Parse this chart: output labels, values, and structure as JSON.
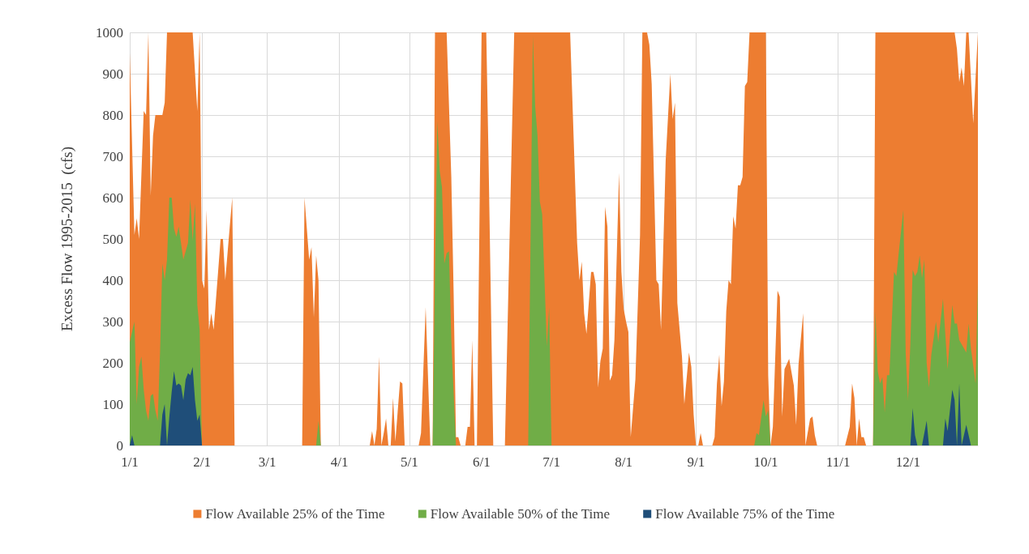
{
  "chart_data": {
    "type": "area",
    "ylabel": "Excess Flow 1995-2015  (cfs)",
    "xlim": [
      "--01-01",
      "--12-31"
    ],
    "xticks": [
      {
        "value": "--01-01",
        "label": "1/1"
      },
      {
        "value": "--02-01",
        "label": "2/1"
      },
      {
        "value": "--03-01",
        "label": "3/1"
      },
      {
        "value": "--04-01",
        "label": "4/1"
      },
      {
        "value": "--05-01",
        "label": "5/1"
      },
      {
        "value": "--06-01",
        "label": "6/1"
      },
      {
        "value": "--07-01",
        "label": "7/1"
      },
      {
        "value": "--08-01",
        "label": "8/1"
      },
      {
        "value": "--09-01",
        "label": "9/1"
      },
      {
        "value": "--10-01",
        "label": "10/1"
      },
      {
        "value": "--11-01",
        "label": "11/1"
      },
      {
        "value": "--12-01",
        "label": "12/1"
      }
    ],
    "ylim": [
      0,
      1000
    ],
    "yticks": [
      0,
      100,
      200,
      300,
      400,
      500,
      600,
      700,
      800,
      900,
      1000
    ],
    "grid": true,
    "legend": "bottom",
    "series": [
      {
        "name": "Flow Available 25% of the Time",
        "color": "#ed7d31",
        "x": [
          "--01-01",
          "--01-03",
          "--01-04",
          "--01-05",
          "--01-07",
          "--01-08",
          "--01-09",
          "--01-10",
          "--01-11",
          "--01-12",
          "--01-15",
          "--01-16",
          "--01-17",
          "--01-28",
          "--01-30",
          "--01-31",
          "--02-01",
          "--02-02",
          "--02-03",
          "--02-04",
          "--02-05",
          "--02-06",
          "--02-09",
          "--02-10",
          "--02-11",
          "--02-13",
          "--02-14",
          "--02-15",
          "--03-16",
          "--03-17",
          "--03-19",
          "--03-20",
          "--03-21",
          "--03-22",
          "--03-23",
          "--03-24",
          "--04-14",
          "--04-15",
          "--04-16",
          "--04-17",
          "--04-18",
          "--04-19",
          "--04-20",
          "--04-21",
          "--04-22",
          "--04-23",
          "--04-24",
          "--04-25",
          "--04-27",
          "--04-28",
          "--04-29",
          "--05-05",
          "--05-06",
          "--05-08",
          "--05-10",
          "--05-11",
          "--05-12",
          "--05-17",
          "--05-19",
          "--05-20",
          "--05-21",
          "--05-22",
          "--05-23",
          "--05-25",
          "--05-26",
          "--05-27",
          "--05-28",
          "--05-29",
          "--05-30",
          "--06-01",
          "--06-03",
          "--06-04",
          "--06-06",
          "--06-11",
          "--06-15",
          "--07-09",
          "--07-12",
          "--07-13",
          "--07-14",
          "--07-15",
          "--07-16",
          "--07-18",
          "--07-19",
          "--07-20",
          "--07-21",
          "--07-22",
          "--07-23",
          "--07-24",
          "--07-25",
          "--07-26",
          "--07-27",
          "--07-28",
          "--07-30",
          "--07-31",
          "--08-01",
          "--08-02",
          "--08-03",
          "--08-04",
          "--08-06",
          "--08-08",
          "--08-09",
          "--08-11",
          "--08-12",
          "--08-13",
          "--08-15",
          "--08-16",
          "--08-17",
          "--08-19",
          "--08-21",
          "--08-22",
          "--08-23",
          "--08-24",
          "--08-26",
          "--08-27",
          "--08-29",
          "--08-30",
          "--08-31",
          "--09-01",
          "--09-02",
          "--09-03",
          "--09-04",
          "--09-08",
          "--09-09",
          "--09-10",
          "--09-11",
          "--09-12",
          "--09-13",
          "--09-14",
          "--09-15",
          "--09-16",
          "--09-17",
          "--09-18",
          "--09-19",
          "--09-20",
          "--09-21",
          "--09-22",
          "--09-23",
          "--09-24",
          "--10-01",
          "--10-02",
          "--10-03",
          "--10-04",
          "--10-06",
          "--10-07",
          "--10-08",
          "--10-09",
          "--10-11",
          "--10-13",
          "--10-14",
          "--10-15",
          "--10-17",
          "--10-18",
          "--10-20",
          "--10-21",
          "--10-22",
          "--10-23",
          "--11-04",
          "--11-06",
          "--11-07",
          "--11-08",
          "--11-09",
          "--11-10",
          "--11-11",
          "--11-12",
          "--11-13",
          "--11-16",
          "--11-17",
          "--12-21",
          "--12-22",
          "--12-23",
          "--12-24",
          "--12-25",
          "--12-26",
          "--12-27",
          "--12-29",
          "--12-31"
        ],
        "values": [
          950,
          510,
          550,
          500,
          810,
          800,
          1000,
          605,
          750,
          800,
          800,
          830,
          1000,
          1000,
          810,
          1000,
          400,
          380,
          570,
          280,
          320,
          280,
          500,
          500,
          400,
          535,
          600,
          0,
          0,
          600,
          450,
          480,
          310,
          460,
          400,
          0,
          0,
          35,
          0,
          40,
          215,
          0,
          30,
          65,
          0,
          0,
          115,
          10,
          155,
          150,
          0,
          0,
          30,
          335,
          0,
          0,
          1000,
          1000,
          650,
          370,
          20,
          20,
          0,
          0,
          45,
          45,
          255,
          0,
          0,
          1000,
          1000,
          690,
          0,
          0,
          1000,
          1000,
          490,
          400,
          445,
          320,
          270,
          420,
          420,
          390,
          140,
          205,
          235,
          578,
          530,
          157,
          170,
          255,
          660,
          420,
          330,
          300,
          275,
          20,
          160,
          510,
          1000,
          1000,
          970,
          875,
          400,
          390,
          280,
          690,
          900,
          790,
          830,
          345,
          215,
          100,
          225,
          190,
          75,
          0,
          0,
          30,
          0,
          0,
          20,
          150,
          220,
          95,
          155,
          325,
          400,
          390,
          555,
          525,
          630,
          630,
          650,
          870,
          880,
          1000,
          1000,
          170,
          0,
          45,
          375,
          360,
          70,
          185,
          210,
          145,
          50,
          195,
          320,
          0,
          65,
          70,
          25,
          0,
          0,
          45,
          150,
          115,
          0,
          65,
          20,
          20,
          0,
          0,
          1000,
          1000,
          960,
          880,
          915,
          870,
          1000,
          1000,
          780,
          1000
        ]
      },
      {
        "name": "Flow Available 50% of the Time",
        "color": "#70ad47",
        "x": [
          "--01-01",
          "--01-03",
          "--01-04",
          "--01-05",
          "--01-06",
          "--01-07",
          "--01-08",
          "--01-09",
          "--01-10",
          "--01-11",
          "--01-12",
          "--01-13",
          "--01-14",
          "--01-15",
          "--01-16",
          "--01-17",
          "--01-18",
          "--01-19",
          "--01-20",
          "--01-21",
          "--01-22",
          "--01-24",
          "--01-26",
          "--01-27",
          "--01-28",
          "--01-29",
          "--01-30",
          "--01-31",
          "--02-01",
          "--03-22",
          "--03-23",
          "--03-24",
          "--05-11",
          "--05-12",
          "--05-13",
          "--05-14",
          "--05-15",
          "--05-16",
          "--05-17",
          "--05-18",
          "--05-19",
          "--05-21",
          "--06-21",
          "--06-23",
          "--06-24",
          "--06-25",
          "--06-26",
          "--06-27",
          "--06-29",
          "--06-30",
          "--07-01",
          "--09-26",
          "--09-27",
          "--09-28",
          "--09-30",
          "--10-01",
          "--10-02",
          "--10-03",
          "--11-16",
          "--11-17",
          "--11-18",
          "--11-19",
          "--11-20",
          "--11-21",
          "--11-22",
          "--11-23",
          "--11-25",
          "--11-26",
          "--11-27",
          "--11-29",
          "--11-30",
          "--12-01",
          "--12-02",
          "--12-03",
          "--12-04",
          "--12-05",
          "--12-06",
          "--12-07",
          "--12-08",
          "--12-09",
          "--12-10",
          "--12-11",
          "--12-12",
          "--12-13",
          "--12-14",
          "--12-16",
          "--12-18",
          "--12-20",
          "--12-21",
          "--12-22",
          "--12-23",
          "--12-24",
          "--12-26",
          "--12-27",
          "--12-28",
          "--12-30",
          "--12-31"
        ],
        "values": [
          250,
          300,
          100,
          190,
          215,
          135,
          85,
          60,
          120,
          125,
          85,
          60,
          225,
          440,
          400,
          450,
          600,
          600,
          525,
          505,
          530,
          450,
          490,
          595,
          495,
          585,
          340,
          280,
          0,
          0,
          60,
          0,
          0,
          420,
          785,
          665,
          625,
          440,
          465,
          470,
          255,
          0,
          0,
          990,
          820,
          750,
          590,
          560,
          240,
          335,
          0,
          0,
          30,
          25,
          110,
          70,
          85,
          0,
          0,
          325,
          180,
          150,
          165,
          80,
          170,
          170,
          420,
          410,
          465,
          570,
          225,
          110,
          245,
          425,
          410,
          420,
          460,
          405,
          450,
          200,
          140,
          220,
          260,
          300,
          250,
          355,
          185,
          340,
          295,
          295,
          255,
          245,
          225,
          295,
          235,
          150,
          395
        ]
      },
      {
        "name": "Flow Available 75% of the Time",
        "color": "#1f4e79",
        "x": [
          "--01-01",
          "--01-02",
          "--01-03",
          "--01-14",
          "--01-15",
          "--01-16",
          "--01-17",
          "--01-18",
          "--01-19",
          "--01-20",
          "--01-21",
          "--01-22",
          "--01-23",
          "--01-24",
          "--01-25",
          "--01-26",
          "--01-27",
          "--01-28",
          "--01-29",
          "--01-30",
          "--01-31",
          "--02-01",
          "--12-02",
          "--12-03",
          "--12-04",
          "--12-05",
          "--12-07",
          "--12-09",
          "--12-10",
          "--12-16",
          "--12-17",
          "--12-18",
          "--12-20",
          "--12-21",
          "--12-22",
          "--12-23",
          "--12-24",
          "--12-26",
          "--12-28"
        ],
        "values": [
          0,
          25,
          0,
          0,
          75,
          100,
          0,
          70,
          130,
          180,
          145,
          150,
          145,
          110,
          160,
          175,
          170,
          190,
          110,
          60,
          75,
          0,
          0,
          90,
          25,
          0,
          0,
          60,
          0,
          0,
          65,
          35,
          135,
          110,
          0,
          150,
          0,
          50,
          0
        ]
      }
    ]
  }
}
